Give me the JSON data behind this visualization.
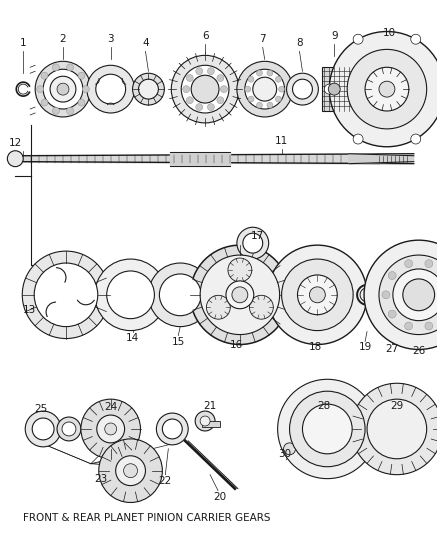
{
  "title": "FRONT & REAR PLANET PINION CARRIER GEARS",
  "bg": "#ffffff",
  "lc": "#1a1a1a",
  "figsize": [
    4.38,
    5.33
  ],
  "dpi": 100
}
